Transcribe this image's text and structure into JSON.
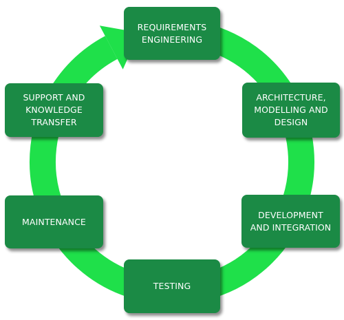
{
  "diagram": {
    "type": "cycle",
    "ring_color": "#1fe04a",
    "box_color": "#1b8a45",
    "text_color": "#ffffff",
    "stages": [
      {
        "key": "requirements",
        "label": "REQUIREMENTS\nENGINEERING"
      },
      {
        "key": "architecture",
        "label": "ARCHITECTURE,\nMODELLING AND\nDESIGN"
      },
      {
        "key": "development",
        "label": "DEVELOPMENT\nAND INTEGRATION"
      },
      {
        "key": "testing",
        "label": "TESTING"
      },
      {
        "key": "maintenance",
        "label": "MAINTENANCE"
      },
      {
        "key": "support",
        "label": "SUPPORT AND\nKNOWLEDGE\nTRANSFER"
      }
    ],
    "arrow": {
      "from": "support",
      "to": "requirements",
      "direction": "clockwise"
    }
  }
}
